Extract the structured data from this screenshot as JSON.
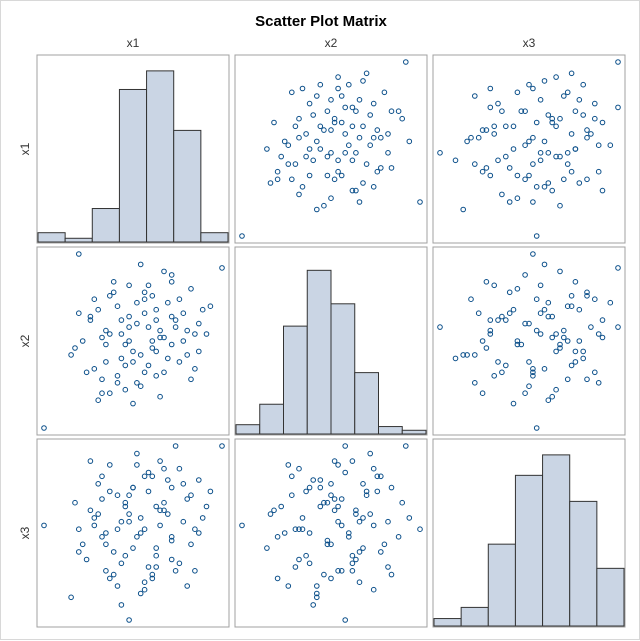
{
  "chart_data": {
    "type": "scatter",
    "title": "Scatter Plot Matrix",
    "variables": [
      "x1",
      "x2",
      "x3"
    ],
    "colors": {
      "marker": "#0b4f8a",
      "bar_fill": "#cad5e4",
      "bar_stroke": "#333333",
      "panel_border": "#a0a0a0"
    },
    "grid": false,
    "diagonal": "histogram",
    "histograms": {
      "x1": {
        "bins": 7,
        "values": [
          5,
          2,
          18,
          82,
          92,
          60,
          5
        ]
      },
      "x2": {
        "bins": 8,
        "values": [
          5,
          16,
          58,
          88,
          70,
          33,
          4,
          2
        ]
      },
      "x3": {
        "bins": 7,
        "values": [
          4,
          10,
          44,
          81,
          92,
          67,
          31
        ]
      }
    },
    "observations": [
      [
        -2.4,
        -2.5,
        0.3
      ],
      [
        -0.2,
        0.4,
        -2.2
      ],
      [
        -1.5,
        2.5,
        0.2
      ],
      [
        2.2,
        2.1,
        2.4
      ],
      [
        -0.7,
        -1.5,
        -1.1
      ],
      [
        0.9,
        1.7,
        1.3
      ],
      [
        -1.1,
        -0.8,
        0.5
      ],
      [
        1.6,
        -0.3,
        1.5
      ],
      [
        0.5,
        0.6,
        -0.5
      ],
      [
        -0.3,
        -0.1,
        0.9
      ],
      [
        0.2,
        1.2,
        -1.4
      ],
      [
        1.2,
        0.8,
        0.4
      ],
      [
        -0.8,
        0.3,
        -0.9
      ],
      [
        0.7,
        -0.9,
        1.8
      ],
      [
        -1.7,
        -0.4,
        -1.6
      ],
      [
        0.1,
        -1.3,
        0.1
      ],
      [
        1.4,
        1.5,
        -0.2
      ],
      [
        -0.5,
        1.0,
        1.1
      ],
      [
        0.4,
        -0.2,
        -1.0
      ],
      [
        -1.2,
        0.7,
        0.7
      ],
      [
        1.8,
        0.2,
        0.8
      ],
      [
        -0.1,
        -1.8,
        -0.3
      ],
      [
        0.6,
        0.1,
        2.0
      ],
      [
        -0.9,
        -1.1,
        1.6
      ],
      [
        1.1,
        -0.6,
        -0.7
      ],
      [
        0.0,
        0.5,
        0.0
      ],
      [
        -0.6,
        1.4,
        -0.4
      ],
      [
        0.3,
        -0.7,
        1.2
      ],
      [
        -1.4,
        0.0,
        -0.2
      ],
      [
        0.8,
        1.1,
        0.6
      ],
      [
        -0.4,
        -0.5,
        -1.8
      ],
      [
        1.3,
        0.3,
        1.0
      ],
      [
        -0.2,
        1.6,
        0.4
      ],
      [
        0.5,
        -1.0,
        -0.8
      ],
      [
        -1.0,
        0.9,
        1.4
      ],
      [
        0.9,
        -0.1,
        -0.1
      ],
      [
        -0.3,
        -1.4,
        0.8
      ],
      [
        0.2,
        0.8,
        -1.2
      ],
      [
        1.5,
        -0.8,
        0.2
      ],
      [
        -0.7,
        0.2,
        1.9
      ],
      [
        0.4,
        1.3,
        1.6
      ],
      [
        -1.3,
        -0.9,
        -0.6
      ],
      [
        1.0,
        0.6,
        -0.9
      ],
      [
        -0.1,
        -0.3,
        1.3
      ],
      [
        0.7,
        2.0,
        0.9
      ],
      [
        -0.8,
        -0.6,
        0.1
      ],
      [
        0.0,
        1.1,
        2.2
      ],
      [
        1.7,
        0.9,
        0.5
      ],
      [
        -0.5,
        -1.2,
        -1.3
      ],
      [
        0.3,
        0.4,
        1.7
      ],
      [
        -1.1,
        1.2,
        0.3
      ],
      [
        0.6,
        -1.6,
        0.7
      ],
      [
        1.2,
        0.0,
        1.4
      ],
      [
        -0.4,
        0.6,
        -0.7
      ],
      [
        0.1,
        -0.4,
        -1.5
      ],
      [
        0.9,
        1.9,
        0.0
      ],
      [
        -0.9,
        0.1,
        1.0
      ],
      [
        1.4,
        -1.1,
        1.1
      ],
      [
        -0.2,
        0.7,
        0.6
      ],
      [
        0.5,
        0.9,
        -0.3
      ],
      [
        -1.6,
        -0.2,
        0.9
      ],
      [
        0.8,
        -0.5,
        1.5
      ],
      [
        -0.6,
        1.7,
        -1.0
      ],
      [
        0.2,
        -0.9,
        0.2
      ],
      [
        1.1,
        1.2,
        1.8
      ],
      [
        -0.3,
        -0.7,
        -0.5
      ],
      [
        0.6,
        0.3,
        0.3
      ],
      [
        -1.0,
        -1.7,
        0.6
      ],
      [
        0.4,
        0.0,
        -1.1
      ],
      [
        1.6,
        0.5,
        0.1
      ],
      [
        -0.7,
        1.3,
        1.2
      ],
      [
        0.0,
        -1.2,
        1.9
      ],
      [
        0.9,
        0.7,
        -0.6
      ],
      [
        -0.4,
        0.2,
        0.4
      ],
      [
        1.3,
        -0.4,
        -1.3
      ],
      [
        -1.2,
        0.6,
        2.0
      ],
      [
        0.3,
        1.6,
        -0.8
      ],
      [
        -0.1,
        -0.6,
        1.3
      ],
      [
        0.7,
        0.1,
        0.7
      ],
      [
        1.9,
        1.0,
        1.2
      ],
      [
        -0.8,
        -0.1,
        -0.2
      ],
      [
        0.1,
        2.2,
        0.5
      ],
      [
        -0.5,
        -1.0,
        0.2
      ],
      [
        1.0,
        0.4,
        2.4
      ],
      [
        -1.5,
        0.8,
        -0.4
      ],
      [
        0.5,
        -0.3,
        0.8
      ],
      [
        0.2,
        1.4,
        1.6
      ],
      [
        -0.9,
        -1.5,
        0.0
      ],
      [
        1.5,
        0.2,
        -0.9
      ],
      [
        -0.2,
        0.0,
        1.1
      ]
    ]
  }
}
